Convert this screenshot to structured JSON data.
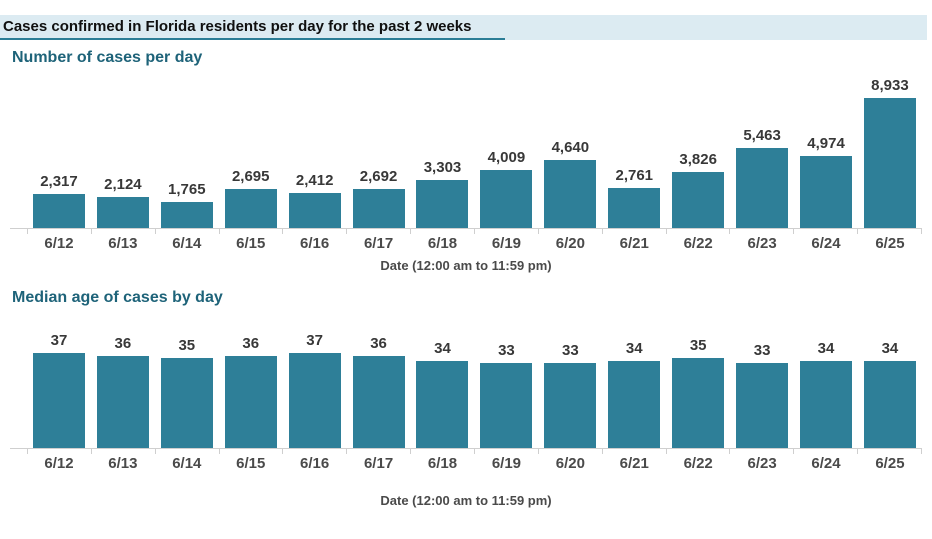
{
  "page": {
    "title": "Cases confirmed in Florida residents per day for the past 2 weeks"
  },
  "colors": {
    "bar_fill": "#2e7f98",
    "section_heading": "#1e6379",
    "title_strip_background": "#dcebf2",
    "title_underline": "#2b7d96",
    "value_label": "#383838",
    "tick_label": "#4a4a4a",
    "axis_line": "#cfcfcf",
    "page_background": "#ffffff"
  },
  "chart_data": [
    {
      "type": "bar",
      "title": "Number of cases per day",
      "categories": [
        "6/12",
        "6/13",
        "6/14",
        "6/15",
        "6/16",
        "6/17",
        "6/18",
        "6/19",
        "6/20",
        "6/21",
        "6/22",
        "6/23",
        "6/24",
        "6/25"
      ],
      "values": [
        2317,
        2124,
        1765,
        2695,
        2412,
        2692,
        3303,
        4009,
        4640,
        2761,
        3826,
        5463,
        4974,
        8933
      ],
      "value_labels": [
        "2,317",
        "2,124",
        "1,765",
        "2,695",
        "2,412",
        "2,692",
        "3,303",
        "4,009",
        "4,640",
        "2,761",
        "3,826",
        "5,463",
        "4,974",
        "8,933"
      ],
      "xlabel": "Date (12:00 am to 11:59 pm)",
      "ylabel": "",
      "ylim": [
        0,
        8933
      ],
      "grid": false,
      "legend": false,
      "data_labels": "above bars"
    },
    {
      "type": "bar",
      "title": "Median age of cases by day",
      "categories": [
        "6/12",
        "6/13",
        "6/14",
        "6/15",
        "6/16",
        "6/17",
        "6/18",
        "6/19",
        "6/20",
        "6/21",
        "6/22",
        "6/23",
        "6/24",
        "6/25"
      ],
      "values": [
        37,
        36,
        35,
        36,
        37,
        36,
        34,
        33,
        33,
        34,
        35,
        33,
        34,
        34
      ],
      "value_labels": [
        "37",
        "36",
        "35",
        "36",
        "37",
        "36",
        "34",
        "33",
        "33",
        "34",
        "35",
        "33",
        "34",
        "34"
      ],
      "xlabel": "Date (12:00 am to 11:59 pm)",
      "ylabel": "",
      "ylim": [
        0,
        37
      ],
      "grid": false,
      "legend": false,
      "data_labels": "above bars"
    }
  ]
}
